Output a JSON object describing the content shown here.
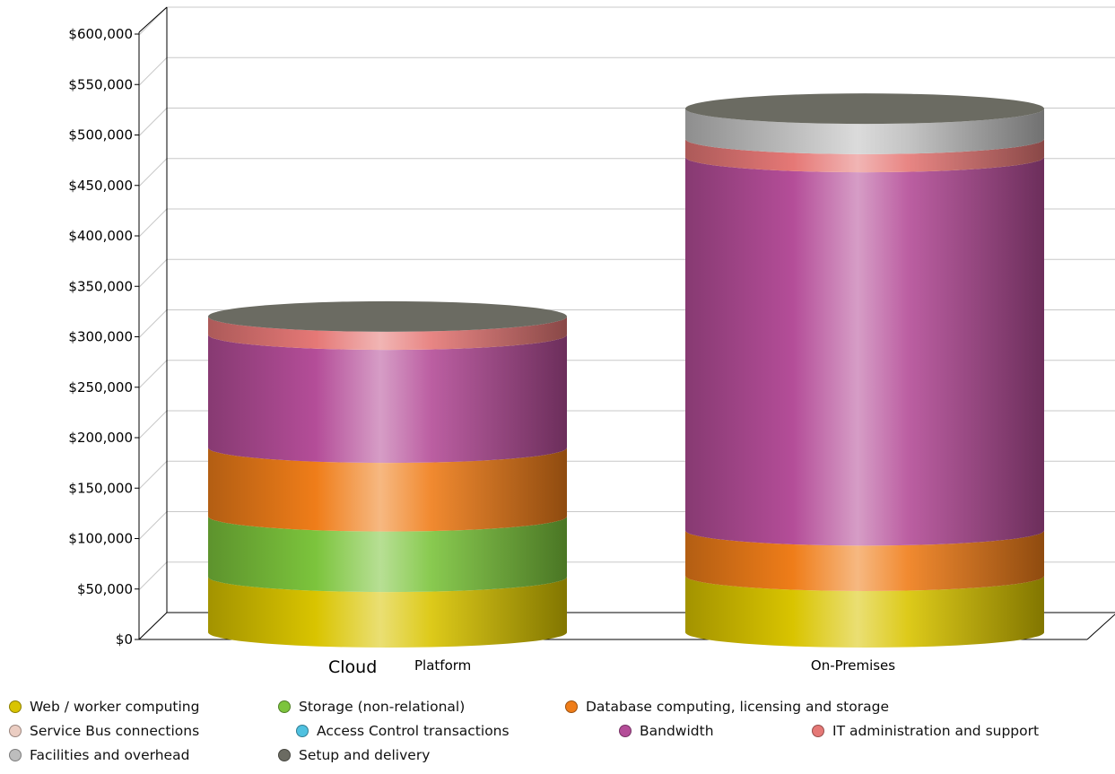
{
  "chart_data": {
    "type": "bar",
    "stacked": true,
    "shape": "cylinder",
    "categories": [
      "Cloud Platform",
      "On-Premises"
    ],
    "y_axis": {
      "ylim": [
        0,
        600000
      ],
      "ticks": [
        0,
        50000,
        100000,
        150000,
        200000,
        250000,
        300000,
        350000,
        400000,
        450000,
        500000,
        550000,
        600000
      ],
      "tick_labels": [
        "$0",
        "$50,000",
        "$100,000",
        "$150,000",
        "$200,000",
        "$250,000",
        "$300,000",
        "$350,000",
        "$400,000",
        "$450,000",
        "$500,000",
        "$550,000",
        "$600,000"
      ]
    },
    "grid": true,
    "legend_position": "bottom",
    "series": [
      {
        "name": "Web / worker computing",
        "color": "#d9c400",
        "values": [
          55000,
          56000
        ]
      },
      {
        "name": "Storage (non-relational)",
        "color": "#7cc43c",
        "values": [
          60000,
          0
        ]
      },
      {
        "name": "Database computing, licensing and storage",
        "color": "#ef7d19",
        "values": [
          68000,
          45000
        ]
      },
      {
        "name": "Service Bus connections",
        "color": "#ebcdc2",
        "values": [
          0,
          0
        ]
      },
      {
        "name": "Access Control transactions",
        "color": "#4fc1e0",
        "values": [
          0,
          0
        ]
      },
      {
        "name": "Bandwidth",
        "color": "#b44d98",
        "values": [
          112000,
          370000
        ]
      },
      {
        "name": "IT administration and support",
        "color": "#e57876",
        "values": [
          18000,
          18000
        ]
      },
      {
        "name": "Facilities and overhead",
        "color": "#bdbdbd",
        "values": [
          0,
          30000
        ]
      },
      {
        "name": "Setup and delivery",
        "color": "#6b6b62",
        "values": [
          0,
          0
        ]
      }
    ]
  },
  "labels": {
    "category_0_prefix": "Cloud",
    "category_0_suffix": "Platform",
    "category_1": "On-Premises"
  }
}
